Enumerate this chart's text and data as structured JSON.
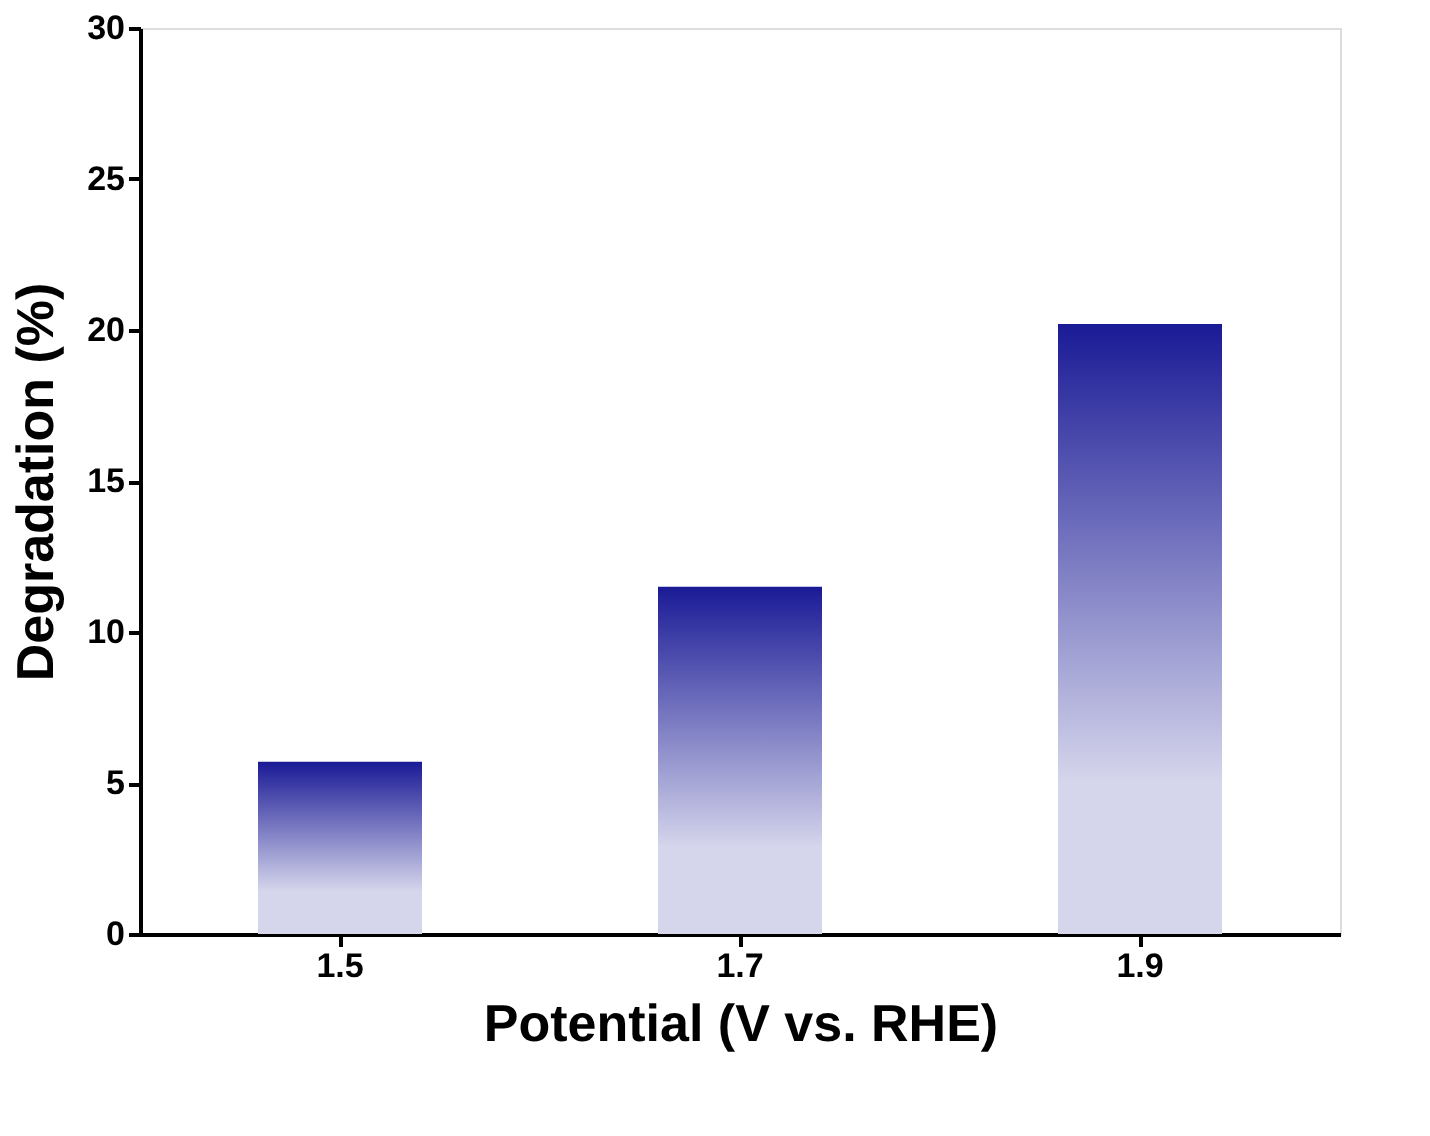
{
  "chart_data": {
    "type": "bar",
    "xlabel": "Potential (V vs. RHE)",
    "ylabel": "Degradation (%)",
    "categories": [
      "1.5",
      "1.7",
      "1.9"
    ],
    "series": [
      {
        "color": "#1a1a96",
        "values": [
          5.7,
          11.5,
          20.2
        ]
      }
    ],
    "ylim": [
      0,
      30
    ],
    "yticks": [
      0,
      5,
      10,
      15,
      20,
      25,
      30
    ],
    "grid": false,
    "legend": false
  }
}
